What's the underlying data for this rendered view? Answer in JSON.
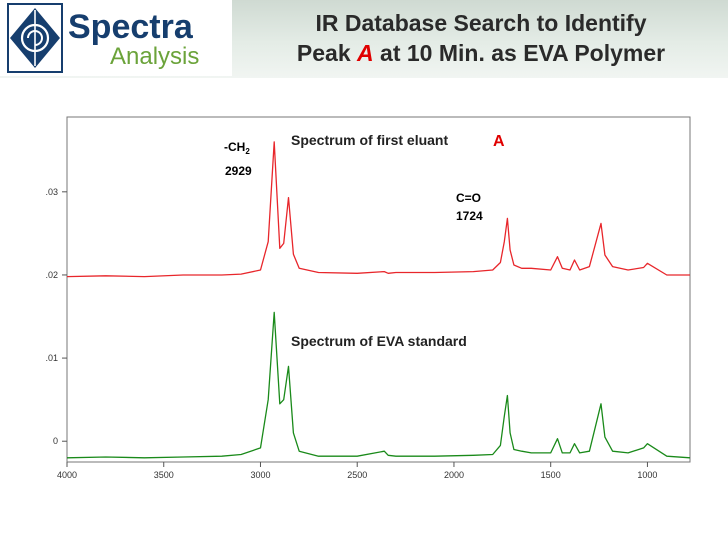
{
  "logo": {
    "line1": "Spectra",
    "line2": "Analysis",
    "colors": {
      "blue": "#163e6e",
      "green": "#6ba33a"
    }
  },
  "header": {
    "title_line1": "IR Database Search to Identify",
    "title_line2_pre": "Peak ",
    "title_line2_accent": "A",
    "title_line2_post": " at 10 Min. as EVA Polymer",
    "accent_color": "#e00000"
  },
  "chart_data": {
    "type": "line",
    "title": "",
    "xlabel": "",
    "ylabel": "",
    "xlim": [
      4000,
      780
    ],
    "ylim": [
      -0.0025,
      0.039
    ],
    "x_ticks": [
      "4000",
      "3500",
      "3000",
      "2500",
      "2000",
      "1500",
      "1000"
    ],
    "y_ticks": [
      ".03",
      ".02",
      ".01",
      "0"
    ],
    "grid": false,
    "annotations": {
      "ch2_label": "-CH",
      "ch2_sub": "2",
      "ch2_value": "2929",
      "co_label": "C=O",
      "co_value": "1724"
    },
    "series": [
      {
        "name": "Spectrum of first eluant",
        "name_accent": "A",
        "color": "#e8262b",
        "x": [
          4000,
          3800,
          3600,
          3400,
          3200,
          3100,
          3000,
          2960,
          2929,
          2900,
          2880,
          2855,
          2830,
          2800,
          2700,
          2500,
          2360,
          2340,
          2300,
          2100,
          1900,
          1800,
          1760,
          1740,
          1724,
          1710,
          1690,
          1650,
          1600,
          1500,
          1465,
          1440,
          1400,
          1377,
          1350,
          1300,
          1240,
          1220,
          1180,
          1100,
          1020,
          1000,
          900,
          780
        ],
        "y": [
          0.0198,
          0.0199,
          0.0198,
          0.02,
          0.02,
          0.0201,
          0.0206,
          0.024,
          0.036,
          0.0232,
          0.0238,
          0.0293,
          0.0225,
          0.0208,
          0.0203,
          0.0202,
          0.0204,
          0.0202,
          0.0203,
          0.0203,
          0.0204,
          0.0206,
          0.0215,
          0.024,
          0.0268,
          0.023,
          0.0212,
          0.0208,
          0.0208,
          0.0206,
          0.0222,
          0.0208,
          0.0206,
          0.0218,
          0.0206,
          0.021,
          0.0262,
          0.0224,
          0.021,
          0.0206,
          0.0209,
          0.0214,
          0.02,
          0.02
        ]
      },
      {
        "name": "Spectrum of EVA standard",
        "color": "#1a8a1a",
        "x": [
          4000,
          3800,
          3600,
          3400,
          3200,
          3100,
          3000,
          2960,
          2929,
          2900,
          2880,
          2855,
          2830,
          2800,
          2700,
          2500,
          2360,
          2340,
          2300,
          2100,
          1900,
          1800,
          1760,
          1740,
          1724,
          1710,
          1690,
          1650,
          1600,
          1500,
          1465,
          1440,
          1400,
          1377,
          1350,
          1300,
          1240,
          1220,
          1180,
          1100,
          1020,
          1000,
          900,
          780
        ],
        "y": [
          -0.002,
          -0.0019,
          -0.002,
          -0.0019,
          -0.0018,
          -0.0016,
          -0.0008,
          0.005,
          0.0155,
          0.0045,
          0.005,
          0.009,
          0.001,
          -0.0012,
          -0.0018,
          -0.0018,
          -0.0012,
          -0.0017,
          -0.0018,
          -0.0018,
          -0.0017,
          -0.0016,
          -0.0005,
          0.003,
          0.0055,
          0.001,
          -0.001,
          -0.0012,
          -0.0014,
          -0.0014,
          0.0003,
          -0.0014,
          -0.0014,
          -0.0003,
          -0.0014,
          -0.0012,
          0.0045,
          0.0005,
          -0.0012,
          -0.0014,
          -0.0008,
          -0.0003,
          -0.0018,
          -0.002
        ]
      }
    ]
  }
}
